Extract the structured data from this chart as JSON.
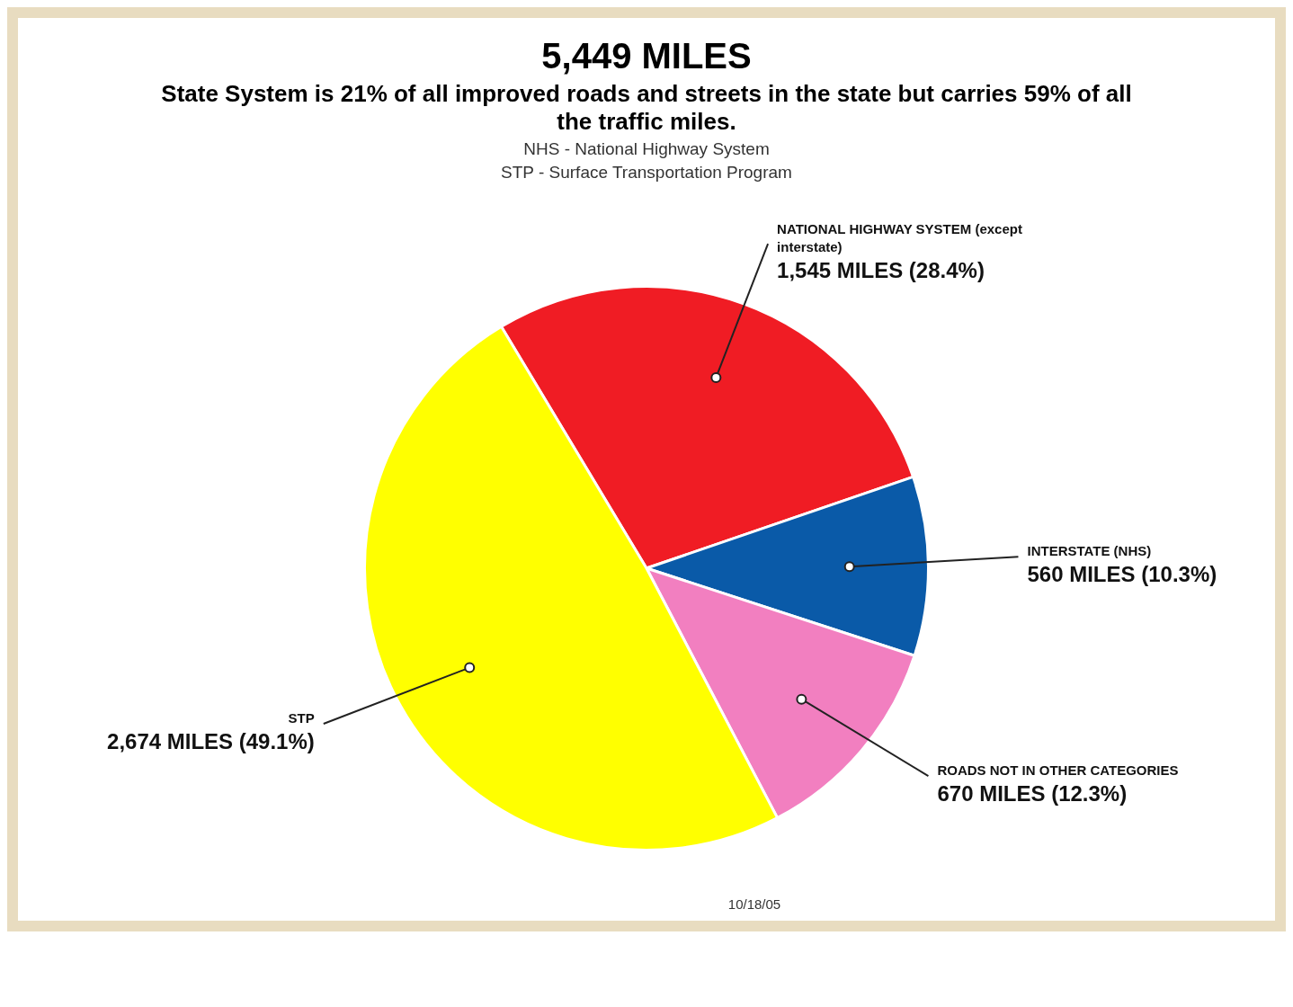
{
  "chart_data": {
    "type": "pie",
    "title": "5,449 MILES",
    "subtitle": "State System is 21% of all improved roads and streets in the state but carries 59% of all the traffic miles.",
    "categories": [
      "NATIONAL HIGHWAY SYSTEM (except interstate)",
      "INTERSTATE (NHS)",
      "ROADS NOT IN OTHER CATEGORIES",
      "STP"
    ],
    "values": [
      1545,
      560,
      670,
      2674
    ],
    "colors": [
      "#f01c24",
      "#0a5aa8",
      "#f27fc0",
      "#ffff00"
    ],
    "value_labels": [
      "1,545 MILES (28.4%)",
      "560 MILES (10.3%)",
      "670 MILES (12.3%)",
      "2,674 MILES (49.1%)"
    ],
    "annotations": [
      "NHS - National Highway System",
      "STP - Surface Transportation Program",
      "10/18/05"
    ],
    "legend": false
  }
}
